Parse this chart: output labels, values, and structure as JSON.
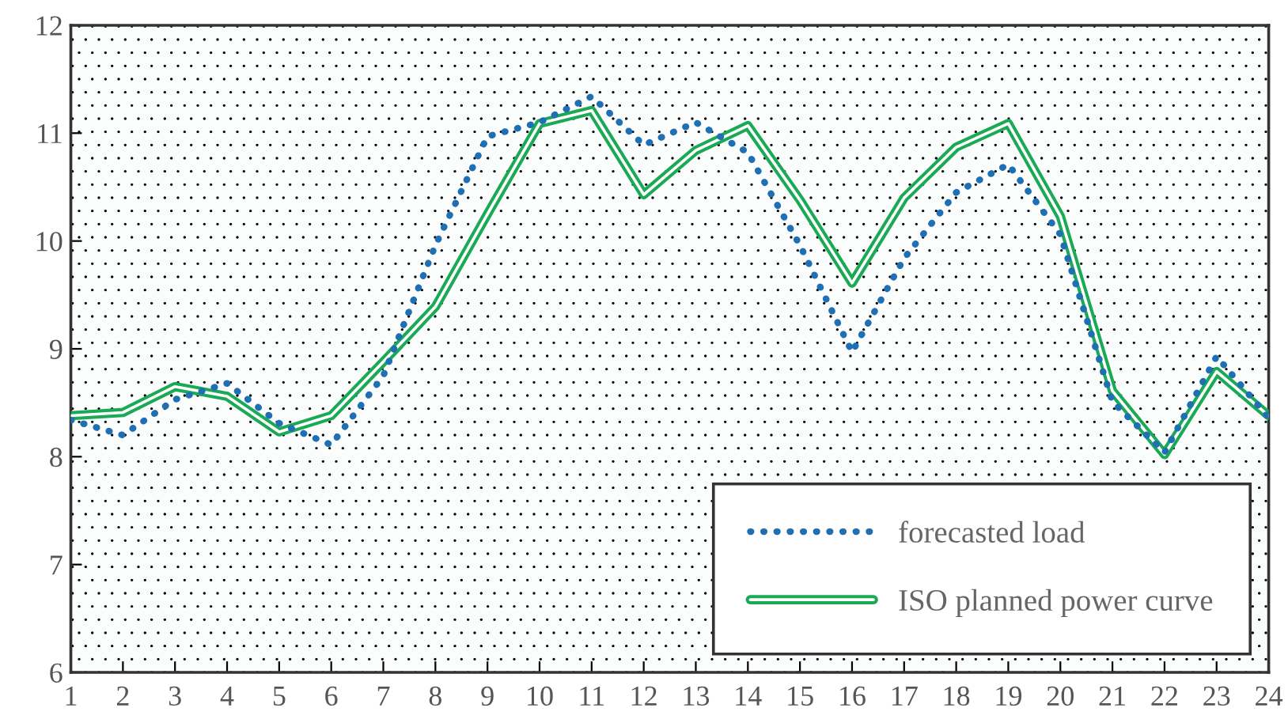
{
  "chart_data": {
    "type": "line",
    "x": [
      1,
      2,
      3,
      4,
      5,
      6,
      7,
      8,
      9,
      10,
      11,
      12,
      13,
      14,
      15,
      16,
      17,
      18,
      19,
      20,
      21,
      22,
      23,
      24
    ],
    "series": [
      {
        "name": "forecasted load",
        "color": "#1f6fb4",
        "line_style": "dotted",
        "values": [
          8.34,
          8.2,
          8.53,
          8.68,
          8.31,
          8.11,
          8.75,
          9.96,
          10.97,
          11.1,
          11.34,
          10.89,
          11.1,
          10.82,
          9.96,
          8.97,
          9.84,
          10.45,
          10.71,
          10.06,
          8.51,
          8.04,
          8.93,
          8.36
        ]
      },
      {
        "name": "ISO planned power curve",
        "color": "#1aaa55",
        "line_style": "solid",
        "values": [
          8.38,
          8.41,
          8.65,
          8.56,
          8.23,
          8.38,
          8.88,
          9.39,
          10.25,
          11.09,
          11.21,
          10.43,
          10.84,
          11.07,
          10.38,
          9.61,
          10.4,
          10.87,
          11.09,
          10.23,
          8.61,
          8.02,
          8.79,
          8.38
        ]
      }
    ],
    "xlim": [
      1,
      24
    ],
    "xticks": [
      1,
      2,
      3,
      4,
      5,
      6,
      7,
      8,
      9,
      10,
      11,
      12,
      13,
      14,
      15,
      16,
      17,
      18,
      19,
      20,
      21,
      22,
      23,
      24
    ],
    "ylim": [
      6,
      12
    ],
    "yticks": [
      6,
      7,
      8,
      9,
      10,
      11,
      12
    ],
    "grid": false,
    "legend": "bottom right",
    "marker": "none"
  }
}
